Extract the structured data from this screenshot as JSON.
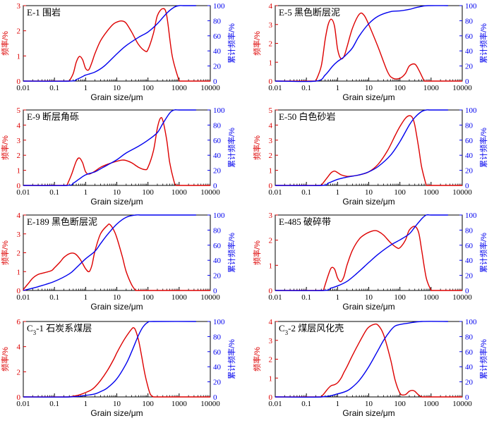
{
  "figure": {
    "colors": {
      "frequency": "#dd0000",
      "cumulative": "#0000ee",
      "axis": "#000000"
    },
    "x_tick_labels": [
      "0.01",
      "0.1",
      "1",
      "10",
      "100",
      "1000",
      "10000"
    ]
  },
  "chart_data": [
    {
      "type": "line",
      "title": "E-1 围岩",
      "title_parts": {
        "prefix": "E",
        "sub": "",
        "suffix": "-1 围岩"
      },
      "xlabel": "Grain size/μm",
      "ylabel_left": "频率/%",
      "ylabel_right": "累计频率/%",
      "xscale": "log",
      "xlim": [
        0.01,
        10000
      ],
      "ylim_left": [
        0,
        3
      ],
      "yticks_left": [
        0,
        1,
        2,
        3
      ],
      "ylim_right": [
        0,
        100
      ],
      "yticks_right": [
        0,
        20,
        40,
        60,
        80,
        100
      ],
      "series": [
        {
          "name": "频率",
          "axis": "left",
          "x": [
            0.3,
            0.4,
            0.5,
            0.63,
            0.8,
            1,
            1.26,
            1.6,
            2,
            3,
            5,
            8,
            12,
            16,
            20,
            30,
            50,
            80,
            100,
            150,
            200,
            300,
            400,
            600,
            1000
          ],
          "y": [
            0,
            0.3,
            0.75,
            0.98,
            0.85,
            0.5,
            0.45,
            0.75,
            1.1,
            1.6,
            2.0,
            2.28,
            2.38,
            2.38,
            2.3,
            1.95,
            1.45,
            1.2,
            1.25,
            1.9,
            2.6,
            2.88,
            2.6,
            1.0,
            0
          ]
        },
        {
          "name": "累计频率",
          "axis": "right",
          "x": [
            0.01,
            0.3,
            0.5,
            0.8,
            1,
            2,
            4,
            10,
            20,
            50,
            100,
            200,
            400,
            700,
            1000,
            1500,
            3500
          ],
          "y": [
            0,
            0,
            2,
            6,
            8,
            12,
            20,
            36,
            47,
            58,
            65,
            76,
            90,
            98,
            100,
            100,
            100
          ]
        }
      ]
    },
    {
      "type": "line",
      "title": "E-5 黑色断层泥",
      "title_parts": {
        "prefix": "E",
        "sub": "",
        "suffix": "-5 黑色断层泥"
      },
      "xlabel": "Grain size/μm",
      "ylabel_left": "频率/%",
      "ylabel_right": "累计频率/%",
      "xscale": "log",
      "xlim": [
        0.01,
        10000
      ],
      "ylim_left": [
        0,
        4
      ],
      "yticks_left": [
        0,
        1,
        2,
        3,
        4
      ],
      "ylim_right": [
        0,
        100
      ],
      "yticks_right": [
        0,
        20,
        40,
        60,
        80,
        100
      ],
      "series": [
        {
          "name": "频率",
          "axis": "left",
          "x": [
            0.2,
            0.3,
            0.4,
            0.5,
            0.63,
            0.8,
            1,
            1.26,
            1.6,
            2,
            3,
            5,
            7,
            10,
            20,
            40,
            60,
            100,
            150,
            200,
            300,
            400,
            600
          ],
          "y": [
            0,
            0.8,
            2.2,
            3.0,
            3.28,
            2.9,
            1.7,
            1.2,
            1.3,
            1.8,
            2.8,
            3.55,
            3.5,
            3.0,
            1.8,
            0.5,
            0.15,
            0.15,
            0.4,
            0.8,
            0.9,
            0.6,
            0
          ]
        },
        {
          "name": "累计频率",
          "axis": "right",
          "x": [
            0.01,
            0.2,
            0.4,
            0.7,
            1,
            1.5,
            2,
            3,
            5,
            10,
            20,
            50,
            100,
            200,
            300,
            500,
            800,
            3500
          ],
          "y": [
            0,
            0,
            8,
            20,
            26,
            31,
            36,
            44,
            60,
            76,
            86,
            92,
            93,
            95,
            97,
            99,
            100,
            100
          ]
        }
      ]
    },
    {
      "type": "line",
      "title": "E-9 断层角砾",
      "title_parts": {
        "prefix": "E",
        "sub": "",
        "suffix": "-9 断层角砾"
      },
      "xlabel": "Grain size/μm",
      "ylabel_left": "频率/%",
      "ylabel_right": "累计频率/%",
      "xscale": "log",
      "xlim": [
        0.01,
        10000
      ],
      "ylim_left": [
        0,
        5
      ],
      "yticks_left": [
        0,
        1,
        2,
        3,
        4,
        5
      ],
      "ylim_right": [
        0,
        100
      ],
      "yticks_right": [
        0,
        20,
        40,
        60,
        80,
        100
      ],
      "series": [
        {
          "name": "频率",
          "axis": "left",
          "x": [
            0.25,
            0.35,
            0.5,
            0.63,
            0.8,
            1,
            1.3,
            2,
            3,
            5,
            10,
            15,
            20,
            30,
            50,
            80,
            100,
            150,
            200,
            250,
            300,
            400,
            500,
            700,
            800
          ],
          "y": [
            0,
            0.7,
            1.6,
            1.82,
            1.5,
            0.9,
            0.75,
            0.95,
            1.2,
            1.4,
            1.6,
            1.68,
            1.65,
            1.5,
            1.2,
            1.05,
            1.2,
            2.3,
            3.8,
            4.45,
            4.3,
            3.0,
            1.5,
            0.2,
            0
          ]
        },
        {
          "name": "累计频率",
          "axis": "right",
          "x": [
            0.01,
            0.25,
            0.4,
            0.6,
            1,
            2,
            3,
            5,
            10,
            20,
            50,
            100,
            200,
            300,
            500,
            700,
            1000,
            3500
          ],
          "y": [
            0,
            0,
            3,
            8,
            14,
            18,
            22,
            27,
            34,
            43,
            52,
            60,
            70,
            82,
            96,
            100,
            100,
            100
          ]
        }
      ]
    },
    {
      "type": "line",
      "title": "E-50 白色砂岩",
      "title_parts": {
        "prefix": "E",
        "sub": "",
        "suffix": "-50 白色砂岩"
      },
      "xlabel": "Grain size/μm",
      "ylabel_left": "频率/%",
      "ylabel_right": "累计频率/%",
      "xscale": "log",
      "xlim": [
        0.01,
        10000
      ],
      "ylim_left": [
        0,
        5
      ],
      "yticks_left": [
        0,
        1,
        2,
        3,
        4,
        5
      ],
      "ylim_right": [
        0,
        100
      ],
      "yticks_right": [
        0,
        20,
        40,
        60,
        80,
        100
      ],
      "series": [
        {
          "name": "频率",
          "axis": "left",
          "x": [
            0.3,
            0.5,
            0.63,
            0.8,
            1,
            1.3,
            2,
            3,
            5,
            10,
            20,
            40,
            70,
            100,
            150,
            200,
            250,
            300,
            400,
            500,
            700
          ],
          "y": [
            0,
            0.6,
            0.85,
            0.95,
            0.85,
            0.7,
            0.6,
            0.62,
            0.7,
            0.9,
            1.4,
            2.3,
            3.3,
            3.9,
            4.45,
            4.62,
            4.5,
            4.0,
            2.5,
            1.2,
            0
          ]
        },
        {
          "name": "累计频率",
          "axis": "right",
          "x": [
            0.01,
            0.3,
            0.5,
            1,
            2,
            5,
            10,
            20,
            50,
            100,
            200,
            300,
            500,
            700,
            1000,
            3500
          ],
          "y": [
            0,
            0,
            3,
            8,
            11,
            14,
            18,
            25,
            40,
            58,
            80,
            90,
            98,
            100,
            100,
            100
          ]
        }
      ]
    },
    {
      "type": "line",
      "title": "E-189 黑色断层泥",
      "title_parts": {
        "prefix": "E",
        "sub": "",
        "suffix": "-189 黑色断层泥"
      },
      "xlabel": "Grain size/μm",
      "ylabel_left": "频率/%",
      "ylabel_right": "累计频率/%",
      "xscale": "log",
      "xlim": [
        0.01,
        10000
      ],
      "ylim_left": [
        0,
        4
      ],
      "yticks_left": [
        0,
        1,
        2,
        3,
        4
      ],
      "ylim_right": [
        0,
        100
      ],
      "yticks_right": [
        0,
        20,
        40,
        60,
        80,
        100
      ],
      "series": [
        {
          "name": "频率",
          "axis": "left",
          "x": [
            0.01,
            0.015,
            0.02,
            0.03,
            0.05,
            0.08,
            0.1,
            0.15,
            0.2,
            0.3,
            0.4,
            0.5,
            0.7,
            1,
            1.3,
            1.6,
            2,
            3,
            5,
            6,
            8,
            10,
            15,
            20,
            30,
            40
          ],
          "y": [
            0.05,
            0.4,
            0.65,
            0.85,
            0.95,
            1.05,
            1.2,
            1.5,
            1.75,
            1.95,
            1.98,
            1.9,
            1.6,
            1.15,
            1.0,
            1.35,
            2.1,
            3.0,
            3.45,
            3.5,
            3.2,
            2.8,
            1.8,
            1.0,
            0.3,
            0
          ]
        },
        {
          "name": "累计频率",
          "axis": "right",
          "x": [
            0.01,
            0.03,
            0.1,
            0.3,
            0.5,
            1,
            2,
            3,
            5,
            10,
            20,
            40,
            60,
            100,
            3500
          ],
          "y": [
            0,
            5,
            12,
            22,
            30,
            42,
            52,
            62,
            74,
            88,
            97,
            100,
            100,
            100,
            100
          ]
        }
      ]
    },
    {
      "type": "line",
      "title": "E-485 破碎带",
      "title_parts": {
        "prefix": "E",
        "sub": "",
        "suffix": "-485 破碎带"
      },
      "xlabel": "Grain size/μm",
      "ylabel_left": "频率/%",
      "ylabel_right": "累计频率/%",
      "xscale": "log",
      "xlim": [
        0.01,
        10000
      ],
      "ylim_left": [
        0,
        3
      ],
      "yticks_left": [
        0,
        1,
        2,
        3
      ],
      "ylim_right": [
        0,
        100
      ],
      "yticks_right": [
        0,
        20,
        40,
        60,
        80,
        100
      ],
      "series": [
        {
          "name": "频率",
          "axis": "left",
          "x": [
            0.35,
            0.5,
            0.63,
            0.8,
            1,
            1.26,
            1.6,
            2,
            3,
            5,
            8,
            12,
            16,
            20,
            30,
            50,
            80,
            100,
            150,
            200,
            300,
            400,
            500,
            700,
            1000
          ],
          "y": [
            0,
            0.6,
            0.9,
            0.85,
            0.5,
            0.35,
            0.55,
            1.0,
            1.6,
            2.05,
            2.25,
            2.35,
            2.38,
            2.35,
            2.2,
            1.9,
            1.7,
            1.7,
            2.0,
            2.4,
            2.55,
            2.3,
            1.6,
            0.5,
            0
          ]
        },
        {
          "name": "累计频率",
          "axis": "right",
          "x": [
            0.01,
            0.35,
            0.6,
            1,
            2,
            4,
            10,
            20,
            50,
            100,
            200,
            300,
            500,
            700,
            1000,
            3500
          ],
          "y": [
            0,
            0,
            3,
            6,
            12,
            22,
            37,
            48,
            60,
            67,
            75,
            84,
            95,
            100,
            100,
            100
          ]
        }
      ]
    },
    {
      "type": "line",
      "title": "C3-1 石炭系煤层",
      "title_parts": {
        "prefix": "C",
        "sub": "3",
        "suffix": "-1 石炭系煤层"
      },
      "xlabel": "Grain size/μm",
      "ylabel_left": "频率/%",
      "ylabel_right": "累计频率/%",
      "xscale": "log",
      "xlim": [
        0.01,
        10000
      ],
      "ylim_left": [
        0,
        6
      ],
      "yticks_left": [
        0,
        2,
        4,
        6
      ],
      "ylim_right": [
        0,
        100
      ],
      "yticks_right": [
        0,
        20,
        40,
        60,
        80,
        100
      ],
      "series": [
        {
          "name": "频率",
          "axis": "left",
          "x": [
            0.3,
            0.5,
            0.7,
            1,
            1.5,
            2,
            3,
            5,
            8,
            10,
            15,
            20,
            30,
            35,
            40,
            50,
            60,
            80,
            100,
            120,
            150
          ],
          "y": [
            0,
            0.1,
            0.2,
            0.35,
            0.55,
            0.8,
            1.3,
            2.1,
            3.0,
            3.5,
            4.3,
            4.8,
            5.4,
            5.5,
            5.3,
            4.5,
            3.5,
            1.8,
            0.8,
            0.2,
            0
          ]
        },
        {
          "name": "累计频率",
          "axis": "right",
          "x": [
            0.01,
            0.3,
            1,
            2,
            3,
            5,
            10,
            20,
            30,
            50,
            70,
            100,
            150,
            3500
          ],
          "y": [
            0,
            0,
            2,
            4,
            7,
            12,
            24,
            44,
            60,
            82,
            93,
            99,
            100,
            100
          ]
        }
      ]
    },
    {
      "type": "line",
      "title": "C3-2 煤层风化壳",
      "title_parts": {
        "prefix": "C",
        "sub": "3",
        "suffix": "-2 煤层风化壳"
      },
      "xlabel": "Grain size/μm",
      "ylabel_left": "频率/%",
      "ylabel_right": "累计频率/%",
      "xscale": "log",
      "xlim": [
        0.01,
        10000
      ],
      "ylim_left": [
        0,
        4
      ],
      "yticks_left": [
        0,
        1,
        2,
        3,
        4
      ],
      "ylim_right": [
        0,
        100
      ],
      "yticks_right": [
        0,
        20,
        40,
        60,
        80,
        100
      ],
      "series": [
        {
          "name": "频率",
          "axis": "left",
          "x": [
            0.3,
            0.4,
            0.5,
            0.63,
            0.8,
            1,
            1.3,
            1.6,
            2,
            3,
            5,
            8,
            10,
            15,
            20,
            30,
            50,
            70,
            100,
            130,
            160,
            200,
            250,
            300,
            400,
            500
          ],
          "y": [
            0,
            0.25,
            0.45,
            0.6,
            0.65,
            0.75,
            1.0,
            1.3,
            1.6,
            2.2,
            2.9,
            3.5,
            3.7,
            3.85,
            3.8,
            3.3,
            2.0,
            0.9,
            0.2,
            0.1,
            0.15,
            0.3,
            0.35,
            0.3,
            0.1,
            0
          ]
        },
        {
          "name": "累计频率",
          "axis": "right",
          "x": [
            0.01,
            0.3,
            1,
            2,
            3,
            5,
            10,
            20,
            30,
            50,
            70,
            100,
            200,
            500,
            3500
          ],
          "y": [
            0,
            0,
            4,
            8,
            13,
            22,
            40,
            62,
            75,
            88,
            94,
            96,
            98,
            100,
            100
          ]
        }
      ]
    }
  ]
}
